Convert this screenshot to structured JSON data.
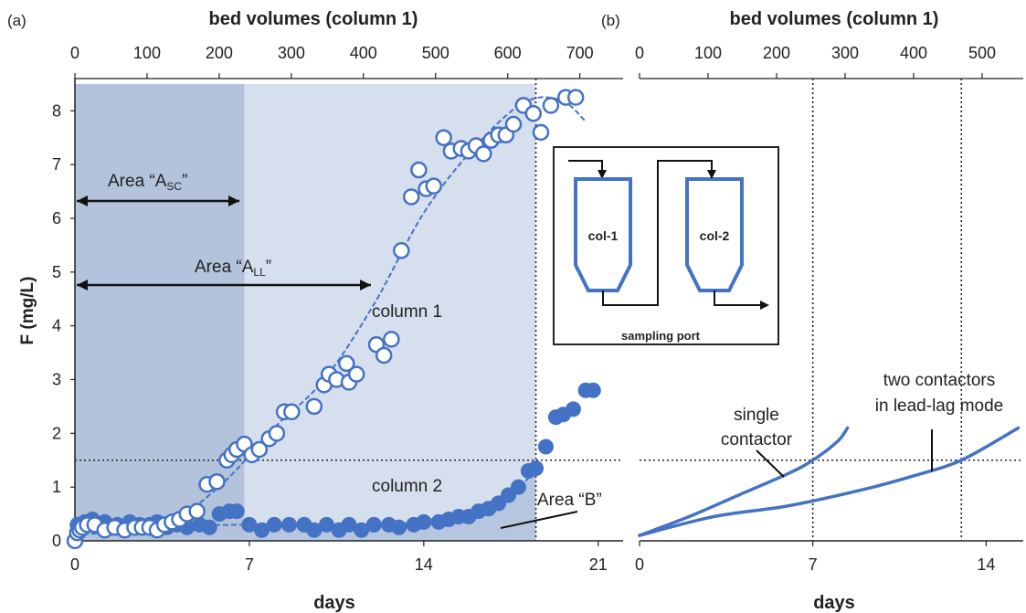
{
  "panels": {
    "a_label": "(a)",
    "b_label": "(b)"
  },
  "colors": {
    "series": "#4472c4",
    "shade_dark": "#b3c3db",
    "shade_light": "#d6dfed",
    "text": "#222222"
  },
  "chart_data": [
    {
      "panel": "(a)",
      "type": "scatter",
      "xlabel": "days",
      "x2label": "bed volumes (column 1)",
      "ylabel": "F (mg/L)",
      "xlim": [
        0,
        22
      ],
      "ylim": [
        0,
        8.6
      ],
      "x2lim": [
        0,
        760
      ],
      "x_ticks": [
        "0",
        "7",
        "14",
        "21"
      ],
      "x2_ticks": [
        "0",
        "100",
        "200",
        "300",
        "400",
        "500",
        "600",
        "700"
      ],
      "y_ticks": [
        "0",
        "1",
        "2",
        "3",
        "4",
        "5",
        "6",
        "7",
        "8"
      ],
      "series": [
        {
          "name": "column 1",
          "marker": "open-circle",
          "points": [
            [
              0,
              0.0
            ],
            [
              0.1,
              0.15
            ],
            [
              0.2,
              0.2
            ],
            [
              0.3,
              0.25
            ],
            [
              0.5,
              0.3
            ],
            [
              0.8,
              0.3
            ],
            [
              1.2,
              0.2
            ],
            [
              1.6,
              0.25
            ],
            [
              2.0,
              0.2
            ],
            [
              2.4,
              0.25
            ],
            [
              2.7,
              0.25
            ],
            [
              3.0,
              0.25
            ],
            [
              3.3,
              0.2
            ],
            [
              3.6,
              0.3
            ],
            [
              3.9,
              0.35
            ],
            [
              4.2,
              0.4
            ],
            [
              4.5,
              0.5
            ],
            [
              4.9,
              0.55
            ],
            [
              5.3,
              1.05
            ],
            [
              5.7,
              1.1
            ],
            [
              6.1,
              1.5
            ],
            [
              6.3,
              1.6
            ],
            [
              6.5,
              1.7
            ],
            [
              6.8,
              1.8
            ],
            [
              7.1,
              1.6
            ],
            [
              7.4,
              1.7
            ],
            [
              7.8,
              1.9
            ],
            [
              8.1,
              2.0
            ],
            [
              8.4,
              2.4
            ],
            [
              8.7,
              2.4
            ],
            [
              9.6,
              2.5
            ],
            [
              10.0,
              2.9
            ],
            [
              10.2,
              3.1
            ],
            [
              10.5,
              3.0
            ],
            [
              10.9,
              3.3
            ],
            [
              11.0,
              2.95
            ],
            [
              11.3,
              3.1
            ],
            [
              12.1,
              3.65
            ],
            [
              12.4,
              3.45
            ],
            [
              12.7,
              3.75
            ],
            [
              13.1,
              5.4
            ],
            [
              13.5,
              6.4
            ],
            [
              13.8,
              6.9
            ],
            [
              14.1,
              6.55
            ],
            [
              14.4,
              6.6
            ],
            [
              14.8,
              7.5
            ],
            [
              15.1,
              7.25
            ],
            [
              15.5,
              7.3
            ],
            [
              15.8,
              7.25
            ],
            [
              16.1,
              7.35
            ],
            [
              16.4,
              7.2
            ],
            [
              16.7,
              7.45
            ],
            [
              17.0,
              7.55
            ],
            [
              17.3,
              7.55
            ],
            [
              17.6,
              7.75
            ],
            [
              18.0,
              8.1
            ],
            [
              18.4,
              7.95
            ],
            [
              18.7,
              7.6
            ],
            [
              19.1,
              8.1
            ],
            [
              19.7,
              8.25
            ],
            [
              20.1,
              8.25
            ]
          ],
          "fit": [
            [
              0,
              0.12
            ],
            [
              2,
              0.18
            ],
            [
              4,
              0.4
            ],
            [
              6,
              1.1
            ],
            [
              8,
              2.1
            ],
            [
              10,
              3.0
            ],
            [
              12,
              4.4
            ],
            [
              14,
              6.1
            ],
            [
              16,
              7.3
            ],
            [
              18,
              8.15
            ],
            [
              19.5,
              8.2
            ],
            [
              20.5,
              7.8
            ]
          ]
        },
        {
          "name": "column 2",
          "marker": "filled-circle",
          "points": [
            [
              0.1,
              0.3
            ],
            [
              0.4,
              0.35
            ],
            [
              0.7,
              0.4
            ],
            [
              1.2,
              0.35
            ],
            [
              1.7,
              0.3
            ],
            [
              2.2,
              0.35
            ],
            [
              2.6,
              0.3
            ],
            [
              3.0,
              0.3
            ],
            [
              3.3,
              0.35
            ],
            [
              3.7,
              0.25
            ],
            [
              4.1,
              0.3
            ],
            [
              4.5,
              0.25
            ],
            [
              5.0,
              0.3
            ],
            [
              5.4,
              0.25
            ],
            [
              5.8,
              0.5
            ],
            [
              6.2,
              0.55
            ],
            [
              6.5,
              0.55
            ],
            [
              7.0,
              0.3
            ],
            [
              7.5,
              0.2
            ],
            [
              8.0,
              0.3
            ],
            [
              8.6,
              0.3
            ],
            [
              9.2,
              0.3
            ],
            [
              9.6,
              0.2
            ],
            [
              10.1,
              0.3
            ],
            [
              10.6,
              0.2
            ],
            [
              11.0,
              0.3
            ],
            [
              11.5,
              0.2
            ],
            [
              12.0,
              0.3
            ],
            [
              12.6,
              0.3
            ],
            [
              13.0,
              0.25
            ],
            [
              13.6,
              0.3
            ],
            [
              14.0,
              0.35
            ],
            [
              14.6,
              0.35
            ],
            [
              15.0,
              0.4
            ],
            [
              15.4,
              0.45
            ],
            [
              15.8,
              0.45
            ],
            [
              16.2,
              0.55
            ],
            [
              16.6,
              0.6
            ],
            [
              17.0,
              0.7
            ],
            [
              17.4,
              0.85
            ],
            [
              17.8,
              1.0
            ],
            [
              18.2,
              1.3
            ],
            [
              18.5,
              1.35
            ],
            [
              18.9,
              1.75
            ],
            [
              19.3,
              2.3
            ],
            [
              19.6,
              2.35
            ],
            [
              20.0,
              2.45
            ],
            [
              20.5,
              2.8
            ],
            [
              20.8,
              2.8
            ]
          ],
          "fit": [
            [
              0,
              0.22
            ],
            [
              4,
              0.28
            ],
            [
              8,
              0.3
            ],
            [
              12,
              0.28
            ],
            [
              14,
              0.38
            ],
            [
              16,
              0.55
            ],
            [
              17.5,
              0.9
            ],
            [
              18.5,
              1.3
            ]
          ]
        }
      ],
      "regions": [
        {
          "label": "Area “A",
          "sub": "SC",
          "close": "”",
          "x": [
            0,
            6.8
          ],
          "y": [
            0,
            8.5
          ]
        },
        {
          "label": "Area “A",
          "sub": "LL",
          "close": "”",
          "x": [
            6.8,
            18.5
          ],
          "y": [
            0,
            8.5
          ]
        },
        {
          "label": "Area “B”"
        }
      ],
      "reference_lines": {
        "hline": 1.5,
        "vline": 18.5
      },
      "annotations": [
        "column 1",
        "column 2"
      ],
      "inset": {
        "col1": "col-1",
        "col2": "col-2",
        "port": "sampling port"
      }
    },
    {
      "panel": "(b)",
      "type": "line",
      "xlabel": "days",
      "x2label": "bed volumes (column 1)",
      "xlim": [
        0,
        15.5
      ],
      "ylim": [
        0,
        8.6
      ],
      "x2lim": [
        0,
        560
      ],
      "x_ticks": [
        "0",
        "7",
        "14"
      ],
      "x2_ticks": [
        "0",
        "100",
        "200",
        "300",
        "400",
        "500"
      ],
      "series": [
        {
          "name": "single contactor",
          "points": [
            [
              0,
              0.1
            ],
            [
              2,
              0.45
            ],
            [
              4,
              0.85
            ],
            [
              6,
              1.25
            ],
            [
              7,
              1.5
            ],
            [
              8,
              1.85
            ],
            [
              8.4,
              2.1
            ]
          ]
        },
        {
          "name": "two contactors in lead-lag mode",
          "points": [
            [
              0,
              0.1
            ],
            [
              3,
              0.45
            ],
            [
              6,
              0.65
            ],
            [
              9,
              0.95
            ],
            [
              11,
              1.2
            ],
            [
              13,
              1.5
            ],
            [
              15.3,
              2.1
            ]
          ]
        }
      ],
      "reference_lines": {
        "hline": 1.5,
        "vlines": [
          7,
          13
        ]
      },
      "annotations": [
        "single",
        "contactor",
        "two contactors",
        "in lead-lag mode"
      ]
    }
  ]
}
